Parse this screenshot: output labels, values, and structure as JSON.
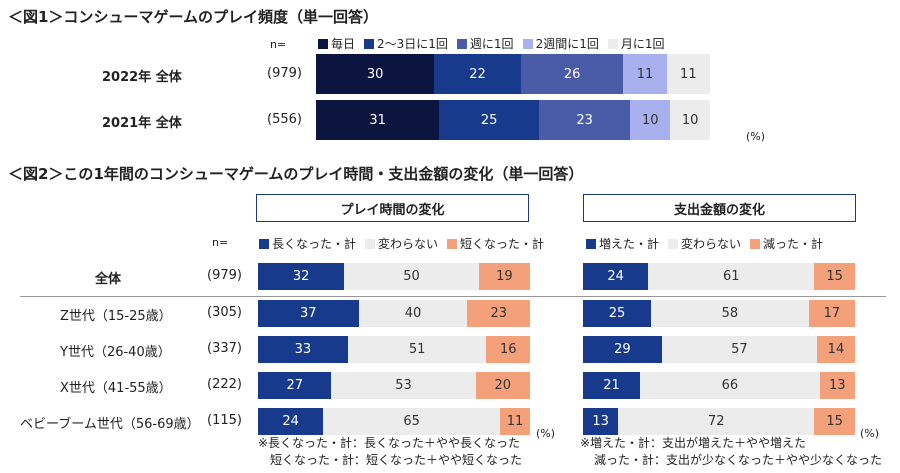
{
  "fig1": {
    "title": "＜図1＞コンシューマゲームのプレイ頻度（単一回答）",
    "n_label": "n=",
    "legend": [
      {
        "label": "毎日",
        "color": "#0b1540"
      },
      {
        "label": "2～3日に1回",
        "color": "#173a8c"
      },
      {
        "label": "週に1回",
        "color": "#4a5ba8"
      },
      {
        "label": "2週間に1回",
        "color": "#a8b0ee"
      },
      {
        "label": "月に1回",
        "color": "#ececec"
      }
    ],
    "rows": [
      {
        "label": "2022年  全体",
        "n": "(979)"
      },
      {
        "label": "2021年  全体",
        "n": "(556)"
      }
    ],
    "pct_label": "(%)"
  },
  "fig2": {
    "title": "＜図2＞この1年間のコンシューマゲームのプレイ時間・支出金額の変化（単一回答）",
    "n_label": "n=",
    "panel_play": {
      "header": "プレイ時間の変化",
      "legend": [
        {
          "label": "長くなった・計",
          "color": "#173a8c"
        },
        {
          "label": "変わらない",
          "color": "#ececec"
        },
        {
          "label": "短くなった・計",
          "color": "#f4a07a"
        }
      ],
      "note1": "※長くなった・計：長くなった＋やや長くなった",
      "note2": "短くなった・計：短くなった＋やや短くなった",
      "pct_label": "(%)"
    },
    "panel_spend": {
      "header": "支出金額の変化",
      "legend": [
        {
          "label": "増えた・計",
          "color": "#173a8c"
        },
        {
          "label": "変わらない",
          "color": "#ececec"
        },
        {
          "label": "減った・計",
          "color": "#f4a07a"
        }
      ],
      "note1": "※増えた・計：支出が増えた＋やや増えた",
      "note2": "減った・計：支出が少なくなった＋やや少なくなった",
      "pct_label": "(%)"
    },
    "rows": [
      {
        "label": "全体",
        "n": "(979)"
      },
      {
        "label": "Z世代（15-25歳）",
        "n": "(305)"
      },
      {
        "label": "Y世代（26-40歳）",
        "n": "(337)"
      },
      {
        "label": "X世代（41-55歳）",
        "n": "(222)"
      },
      {
        "label": "ベビーブーム世代（56-69歳）",
        "n": "(115)"
      }
    ]
  },
  "chart_data": [
    {
      "type": "bar",
      "title": "＜図1＞コンシューマゲームのプレイ頻度（単一回答）",
      "orientation": "horizontal-stacked",
      "categories": [
        "2022年  全体",
        "2021年  全体"
      ],
      "series": [
        {
          "name": "毎日",
          "values": [
            30,
            31
          ]
        },
        {
          "name": "2～3日に1回",
          "values": [
            22,
            25
          ]
        },
        {
          "name": "週に1回",
          "values": [
            26,
            23
          ]
        },
        {
          "name": "2週間に1回",
          "values": [
            11,
            10
          ]
        },
        {
          "name": "月に1回",
          "values": [
            11,
            10
          ]
        }
      ],
      "unit": "%"
    },
    {
      "type": "bar",
      "title": "プレイ時間の変化",
      "orientation": "horizontal-stacked",
      "categories": [
        "全体",
        "Z世代（15-25歳）",
        "Y世代（26-40歳）",
        "X世代（41-55歳）",
        "ベビーブーム世代（56-69歳）"
      ],
      "series": [
        {
          "name": "長くなった・計",
          "values": [
            32,
            37,
            33,
            27,
            24
          ]
        },
        {
          "name": "変わらない",
          "values": [
            50,
            40,
            51,
            53,
            65
          ]
        },
        {
          "name": "短くなった・計",
          "values": [
            19,
            23,
            16,
            20,
            11
          ]
        }
      ],
      "unit": "%"
    },
    {
      "type": "bar",
      "title": "支出金額の変化",
      "orientation": "horizontal-stacked",
      "categories": [
        "全体",
        "Z世代（15-25歳）",
        "Y世代（26-40歳）",
        "X世代（41-55歳）",
        "ベビーブーム世代（56-69歳）"
      ],
      "series": [
        {
          "name": "増えた・計",
          "values": [
            24,
            25,
            29,
            21,
            13
          ]
        },
        {
          "name": "変わらない",
          "values": [
            61,
            58,
            57,
            66,
            72
          ]
        },
        {
          "name": "減った・計",
          "values": [
            15,
            17,
            14,
            13,
            15
          ]
        }
      ],
      "unit": "%"
    }
  ]
}
